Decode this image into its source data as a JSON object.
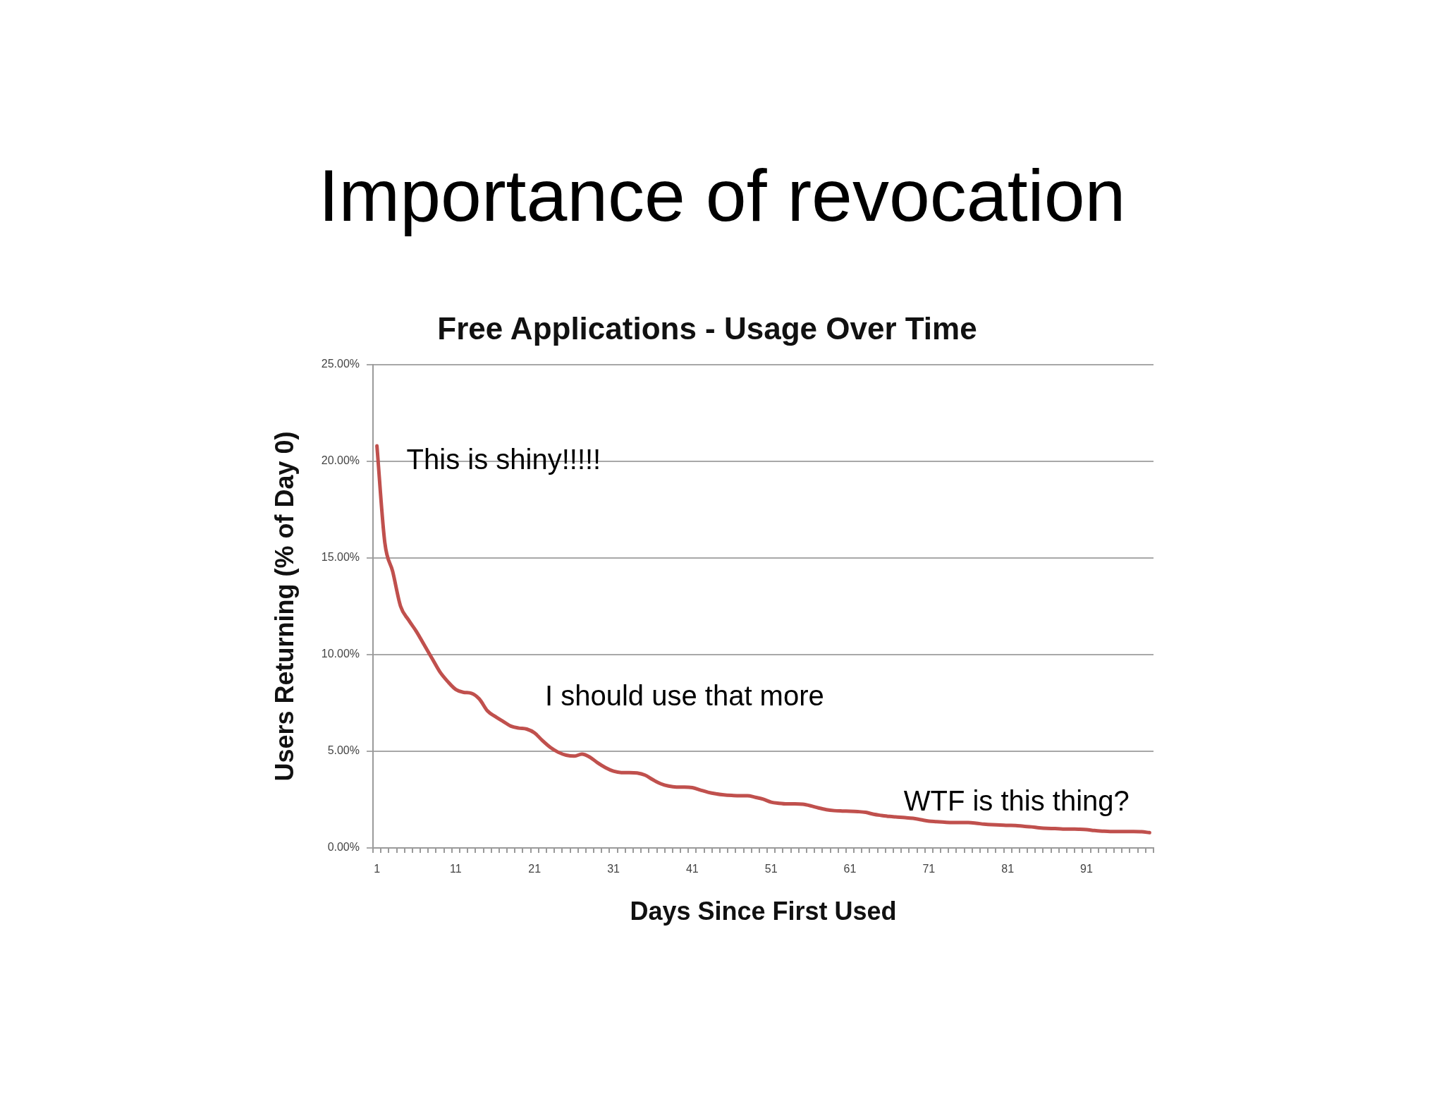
{
  "chart_data": {
    "type": "line",
    "title": "Importance of revocation",
    "subtitle": "Free Applications - Usage Over Time",
    "xlabel": "Days Since First Used",
    "ylabel": "Users Returning (% of Day 0)",
    "annotations": [
      "This is shiny!!!!!",
      "I should use that more",
      "WTF is this thing?"
    ],
    "categories": [
      "1",
      null,
      null,
      null,
      null,
      null,
      null,
      null,
      null,
      null,
      "11",
      null,
      null,
      null,
      null,
      null,
      null,
      null,
      null,
      null,
      "21",
      null,
      null,
      null,
      null,
      null,
      null,
      null,
      null,
      null,
      "31",
      null,
      null,
      null,
      null,
      null,
      null,
      null,
      null,
      null,
      "41",
      null,
      null,
      null,
      null,
      null,
      null,
      null,
      null,
      null,
      "51",
      null,
      null,
      null,
      null,
      null,
      null,
      null,
      null,
      null,
      "61",
      null,
      null,
      null,
      null,
      null,
      null,
      null,
      null,
      null,
      "71",
      null,
      null,
      null,
      null,
      null,
      null,
      null,
      null,
      null,
      "81",
      null,
      null,
      null,
      null,
      null,
      null,
      null,
      null,
      null,
      "91",
      null,
      null,
      null,
      null,
      null,
      null,
      null,
      null
    ],
    "values": [
      20.8,
      15.8,
      14.3,
      12.5,
      11.8,
      11.2,
      10.5,
      9.8,
      9.1,
      8.6,
      8.2,
      8.05,
      8.0,
      7.7,
      7.1,
      6.8,
      6.55,
      6.3,
      6.2,
      6.15,
      5.95,
      5.55,
      5.2,
      4.95,
      4.8,
      4.75,
      4.85,
      4.7,
      4.4,
      4.15,
      3.97,
      3.9,
      3.9,
      3.88,
      3.77,
      3.53,
      3.32,
      3.2,
      3.15,
      3.15,
      3.12,
      3.0,
      2.88,
      2.8,
      2.75,
      2.72,
      2.7,
      2.7,
      2.62,
      2.52,
      2.37,
      2.31,
      2.28,
      2.28,
      2.26,
      2.18,
      2.07,
      1.98,
      1.93,
      1.91,
      1.9,
      1.88,
      1.84,
      1.74,
      1.68,
      1.63,
      1.6,
      1.57,
      1.53,
      1.46,
      1.39,
      1.36,
      1.33,
      1.31,
      1.31,
      1.31,
      1.28,
      1.23,
      1.2,
      1.19,
      1.17,
      1.16,
      1.12,
      1.09,
      1.04,
      1.01,
      1.0,
      0.98,
      0.98,
      0.97,
      0.95,
      0.9,
      0.87,
      0.85,
      0.85,
      0.85,
      0.85,
      0.84,
      0.79
    ],
    "color": "#c0504d",
    "ylim": [
      0,
      25
    ],
    "yticks": [
      {
        "value": 0,
        "label": "0.00%"
      },
      {
        "value": 5,
        "label": "5.00%"
      },
      {
        "value": 10,
        "label": "10.00%"
      },
      {
        "value": 15,
        "label": "15.00%"
      },
      {
        "value": 20,
        "label": "20.00%"
      },
      {
        "value": 25,
        "label": "25.00%"
      }
    ],
    "grid": "y",
    "marker": "none",
    "line_style": "solid"
  }
}
